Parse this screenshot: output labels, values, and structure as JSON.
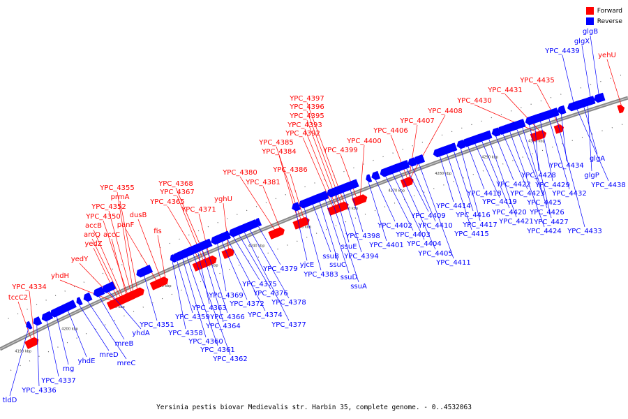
{
  "caption": "Yersinia pestis biovar Medievalis str. Harbin 35, complete genome. - 0..4532063",
  "legend": [
    {
      "label": "Forward",
      "color": "#ff0000"
    },
    {
      "label": "Reverse",
      "color": "#0000ff"
    }
  ],
  "colors": {
    "forward": "#ff0000",
    "reverse": "#0000ff",
    "backbone": "#888888",
    "leader_forward": "#ff0000",
    "leader_reverse": "#0000ff"
  },
  "ticks": [
    "4190 kbp",
    "4200 kbp",
    "4210 kbp",
    "4220 kbp",
    "4230 kbp",
    "4240 kbp",
    "4250 kbp",
    "4260 kbp",
    "4270 kbp",
    "4280 kbp",
    "4290 kbp",
    "4300 kbp"
  ],
  "forward_genes": [
    "yehU",
    "YPC_4435",
    "YPC_4431",
    "YPC_4430",
    "YPC_4408",
    "YPC_4407",
    "YPC_4406",
    "YPC_4400",
    "YPC_4399",
    "YPC_4397",
    "YPC_4396",
    "YPC_4395",
    "YPC_4393",
    "YPC_4392",
    "YPC_4386",
    "YPC_4385",
    "YPC_4384",
    "YPC_4381",
    "YPC_4380",
    "YPC_4371",
    "YPC_4368",
    "YPC_4367",
    "yghU",
    "YPC_4365",
    "fis",
    "dusB",
    "panF",
    "prmA",
    "YPC_4355",
    "YPC_4352",
    "YPC_4350",
    "accC",
    "accB",
    "aroQ",
    "yedZ",
    "yedY",
    "yhdH",
    "YPC_4334",
    "tccC2"
  ],
  "reverse_genes": [
    "tldD",
    "YPC_4336",
    "YPC_4337",
    "rng",
    "yhdE",
    "mreD",
    "mreC",
    "mreB",
    "yhdA",
    "YPC_4351",
    "YPC_4358",
    "YPC_4359",
    "YPC_4360",
    "YPC_4361",
    "YPC_4362",
    "YPC_4363",
    "YPC_4364",
    "YPC_4366",
    "YPC_4369",
    "YPC_4372",
    "YPC_4374",
    "YPC_4375",
    "YPC_4376",
    "YPC_4377",
    "YPC_4378",
    "YPC_4379",
    "yjcE",
    "YPC_4383",
    "ssuB",
    "ssuC",
    "ssuD",
    "ssuA",
    "ssuE",
    "YPC_4394",
    "YPC_4398",
    "YPC_4401",
    "YPC_4402",
    "YPC_4403",
    "YPC_4404",
    "YPC_4405",
    "YPC_4409",
    "YPC_4410",
    "YPC_4411",
    "YPC_4414",
    "YPC_4415",
    "YPC_4416",
    "YPC_4417",
    "YPC_4418",
    "YPC_4419",
    "YPC_4420",
    "YPC_4421",
    "YPC_4422",
    "YPC_4423",
    "YPC_4424",
    "YPC_4425",
    "YPC_4426",
    "YPC_4427",
    "YPC_4428",
    "YPC_4429",
    "YPC_4432",
    "YPC_4433",
    "YPC_4434",
    "YPC_4438",
    "YPC_4439",
    "glgA",
    "glgP",
    "glgX",
    "glgB"
  ]
}
